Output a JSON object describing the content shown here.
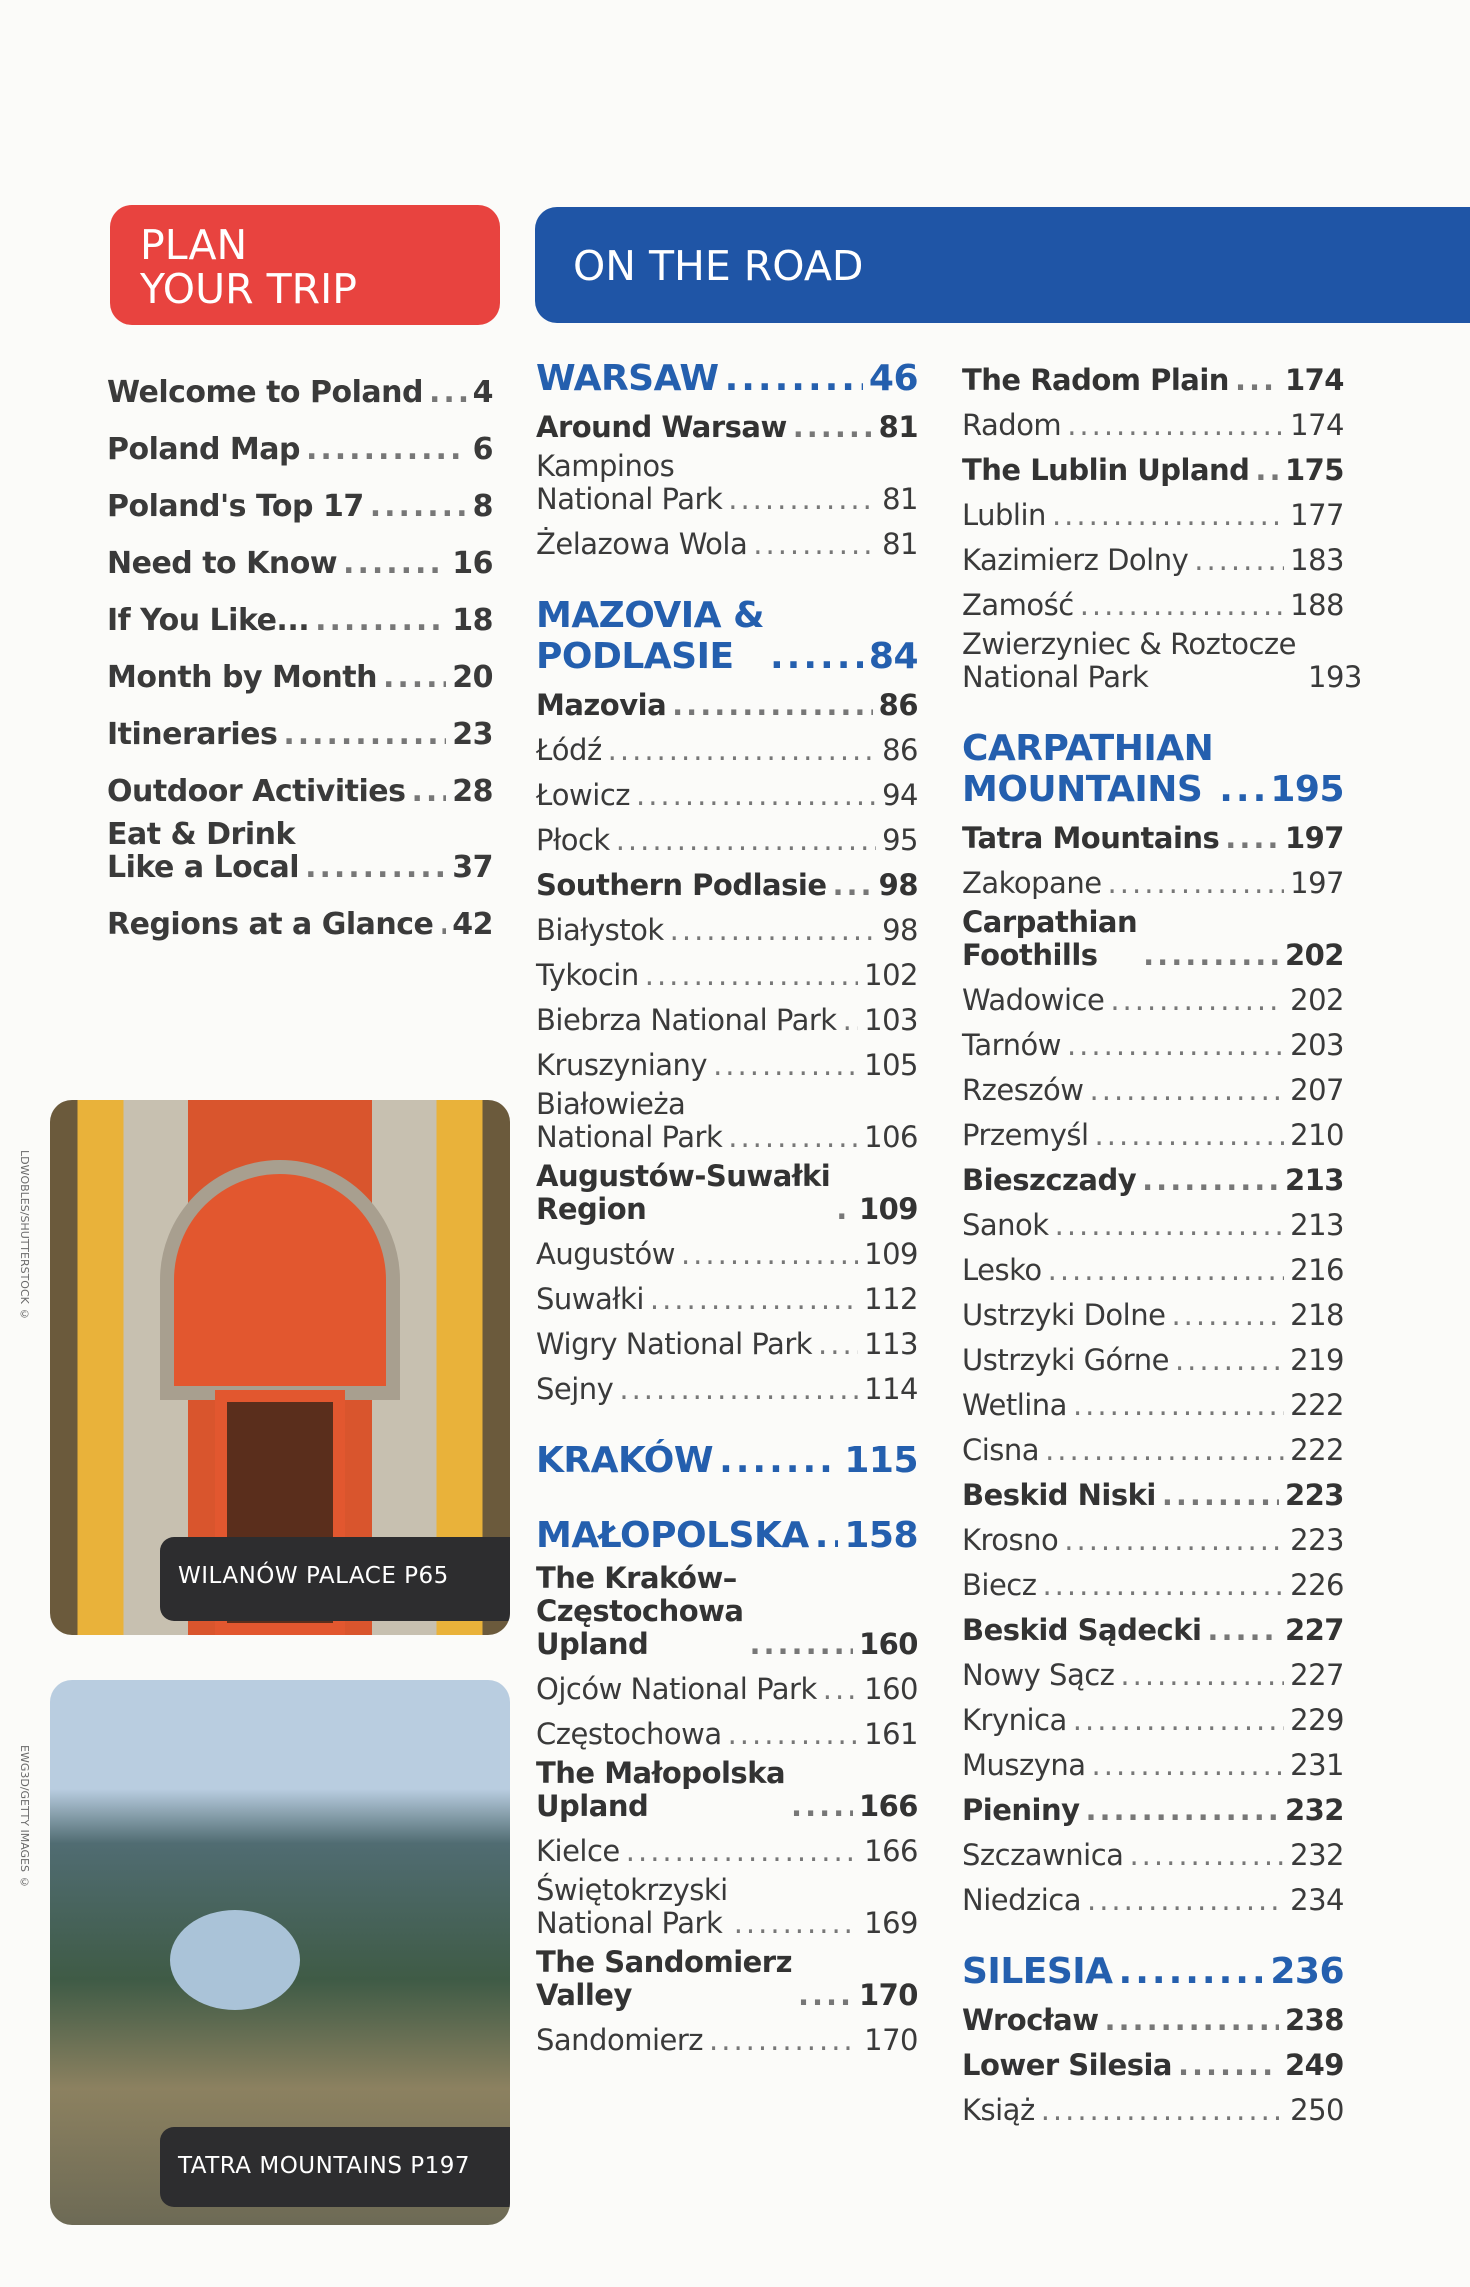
{
  "plan_header": {
    "line1": "PLAN",
    "line2": "YOUR TRIP"
  },
  "road_header": "ON THE ROAD",
  "plan_items": [
    {
      "label": "Welcome to Poland",
      "page": "4"
    },
    {
      "label": "Poland Map",
      "page": "6"
    },
    {
      "label": "Poland's Top 17",
      "page": "8"
    },
    {
      "label": "Need to Know",
      "page": "16"
    },
    {
      "label": "If You Like...",
      "page": "18"
    },
    {
      "label": "Month by Month",
      "page": "20"
    },
    {
      "label": "Itineraries",
      "page": "23"
    },
    {
      "label": "Outdoor Activities",
      "page": "28"
    },
    {
      "label": "Eat & Drink\nLike a Local",
      "page": "37"
    },
    {
      "label": "Regions at a Glance",
      "page": "42"
    }
  ],
  "road_col1": [
    {
      "label": "WARSAW",
      "page": "46",
      "style": "head"
    },
    {
      "label": "Around Warsaw",
      "page": "81",
      "style": "bold"
    },
    {
      "label": "Kampinos\nNational Park",
      "page": "81",
      "style": "normal"
    },
    {
      "label": "Żelazowa Wola",
      "page": "81",
      "style": "normal"
    },
    {
      "label": "MAZOVIA &\nPODLASIE",
      "page": "84",
      "style": "head"
    },
    {
      "label": "Mazovia",
      "page": "86",
      "style": "bold"
    },
    {
      "label": "Łódź",
      "page": "86",
      "style": "normal"
    },
    {
      "label": "Łowicz",
      "page": "94",
      "style": "normal"
    },
    {
      "label": "Płock",
      "page": "95",
      "style": "normal"
    },
    {
      "label": "Southern Podlasie",
      "page": "98",
      "style": "bold"
    },
    {
      "label": "Białystok",
      "page": "98",
      "style": "normal"
    },
    {
      "label": "Tykocin",
      "page": "102",
      "style": "normal"
    },
    {
      "label": "Biebrza National Park",
      "page": "103",
      "style": "normal"
    },
    {
      "label": "Kruszyniany",
      "page": "105",
      "style": "normal"
    },
    {
      "label": "Białowieża\nNational Park",
      "page": "106",
      "style": "normal"
    },
    {
      "label": "Augustów-Suwałki\nRegion",
      "page": "109",
      "style": "bold"
    },
    {
      "label": "Augustów",
      "page": "109",
      "style": "normal"
    },
    {
      "label": "Suwałki",
      "page": "112",
      "style": "normal"
    },
    {
      "label": "Wigry National Park",
      "page": "113",
      "style": "normal"
    },
    {
      "label": "Sejny",
      "page": "114",
      "style": "normal"
    },
    {
      "label": "KRAKÓW",
      "page": "115",
      "style": "head"
    },
    {
      "label": "MAŁOPOLSKA",
      "page": "158",
      "style": "head"
    },
    {
      "label": "The Kraków–\nCzęstochowa\nUpland",
      "page": "160",
      "style": "bold"
    },
    {
      "label": "Ojców National Park",
      "page": "160",
      "style": "normal"
    },
    {
      "label": "Częstochowa",
      "page": "161",
      "style": "normal"
    },
    {
      "label": "The Małopolska\nUpland",
      "page": "166",
      "style": "bold"
    },
    {
      "label": "Kielce",
      "page": "166",
      "style": "normal"
    },
    {
      "label": "Świętokrzyski\nNational Park",
      "page": "169",
      "style": "normal"
    },
    {
      "label": "The Sandomierz\nValley",
      "page": "170",
      "style": "bold"
    },
    {
      "label": "Sandomierz",
      "page": "170",
      "style": "normal"
    }
  ],
  "road_col2": [
    {
      "label": "The Radom Plain",
      "page": "174",
      "style": "bold"
    },
    {
      "label": "Radom",
      "page": "174",
      "style": "normal"
    },
    {
      "label": "The Lublin Upland",
      "page": "175",
      "style": "bold"
    },
    {
      "label": "Lublin",
      "page": "177",
      "style": "normal"
    },
    {
      "label": "Kazimierz Dolny",
      "page": "183",
      "style": "normal"
    },
    {
      "label": "Zamość",
      "page": "188",
      "style": "normal"
    },
    {
      "label": "Zwierzyniec & Roztocze\nNational Park",
      "page": "193",
      "style": "normal"
    },
    {
      "label": "CARPATHIAN\nMOUNTAINS",
      "page": "195",
      "style": "head"
    },
    {
      "label": "Tatra Mountains",
      "page": "197",
      "style": "bold"
    },
    {
      "label": "Zakopane",
      "page": "197",
      "style": "normal"
    },
    {
      "label": "Carpathian\nFoothills",
      "page": "202",
      "style": "bold"
    },
    {
      "label": "Wadowice",
      "page": "202",
      "style": "normal"
    },
    {
      "label": "Tarnów",
      "page": "203",
      "style": "normal"
    },
    {
      "label": "Rzeszów",
      "page": "207",
      "style": "normal"
    },
    {
      "label": "Przemyśl",
      "page": "210",
      "style": "normal"
    },
    {
      "label": "Bieszczady",
      "page": "213",
      "style": "bold"
    },
    {
      "label": "Sanok",
      "page": "213",
      "style": "normal"
    },
    {
      "label": "Lesko",
      "page": "216",
      "style": "normal"
    },
    {
      "label": "Ustrzyki Dolne",
      "page": "218",
      "style": "normal"
    },
    {
      "label": "Ustrzyki Górne",
      "page": "219",
      "style": "normal"
    },
    {
      "label": "Wetlina",
      "page": "222",
      "style": "normal"
    },
    {
      "label": "Cisna",
      "page": "222",
      "style": "normal"
    },
    {
      "label": "Beskid Niski",
      "page": "223",
      "style": "bold"
    },
    {
      "label": "Krosno",
      "page": "223",
      "style": "normal"
    },
    {
      "label": "Biecz",
      "page": "226",
      "style": "normal"
    },
    {
      "label": "Beskid Sądecki",
      "page": "227",
      "style": "bold"
    },
    {
      "label": "Nowy Sącz",
      "page": "227",
      "style": "normal"
    },
    {
      "label": "Krynica",
      "page": "229",
      "style": "normal"
    },
    {
      "label": "Muszyna",
      "page": "231",
      "style": "normal"
    },
    {
      "label": "Pieniny",
      "page": "232",
      "style": "bold"
    },
    {
      "label": "Szczawnica",
      "page": "232",
      "style": "normal"
    },
    {
      "label": "Niedzica",
      "page": "234",
      "style": "normal"
    },
    {
      "label": "SILESIA",
      "page": "236",
      "style": "head"
    },
    {
      "label": "Wrocław",
      "page": "238",
      "style": "bold"
    },
    {
      "label": "Lower Silesia",
      "page": "249",
      "style": "bold"
    },
    {
      "label": "Książ",
      "page": "250",
      "style": "normal"
    }
  ],
  "photos": [
    {
      "caption": "WILANÓW PALACE P65",
      "credit": "LDWOBLES/SHUTTERSTOCK ©"
    },
    {
      "caption": "TATRA MOUNTAINS P197",
      "credit": "EWG3D/GETTY IMAGES ©"
    }
  ],
  "colors": {
    "plan_red": "#e8433f",
    "road_blue": "#1f55a6",
    "heading_blue": "#245fae"
  }
}
